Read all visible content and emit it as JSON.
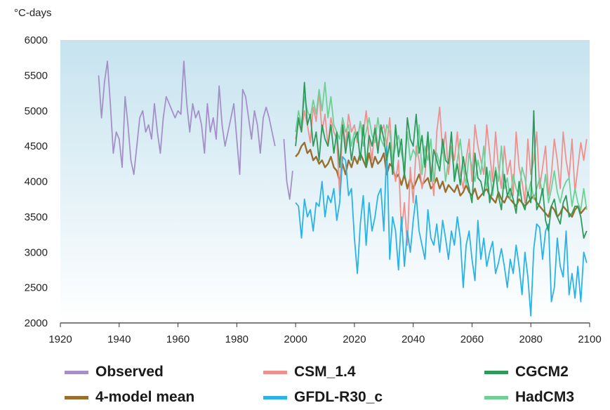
{
  "chart_data": {
    "type": "line",
    "unit_label": "°C-days",
    "xlim": [
      1920,
      2100
    ],
    "ylim": [
      2000,
      6000
    ],
    "x_ticks": [
      1920,
      1940,
      1960,
      1980,
      2000,
      2020,
      2040,
      2060,
      2080,
      2100
    ],
    "y_ticks": [
      2000,
      2500,
      3000,
      3500,
      4000,
      4500,
      5000,
      5500,
      6000
    ],
    "grid": false,
    "legend_position": "bottom",
    "series": [
      {
        "name": "Observed",
        "color": "#a58fc8",
        "x": [
          1933,
          1934,
          1935,
          1936,
          1937,
          1938,
          1939,
          1940,
          1941,
          1942,
          1943,
          1944,
          1945,
          1946,
          1947,
          1948,
          1949,
          1950,
          1951,
          1952,
          1953,
          1954,
          1955,
          1956,
          1957,
          1958,
          1959,
          1960,
          1961,
          1962,
          1963,
          1964,
          1965,
          1966,
          1967,
          1968,
          1969,
          1970,
          1971,
          1972,
          1973,
          1974,
          1975,
          1976,
          1977,
          1978,
          1979,
          1980,
          1981,
          1982,
          1983,
          1984,
          1985,
          1986,
          1987,
          1988,
          1989,
          1990,
          1991,
          1992,
          1993,
          null,
          1996,
          1997,
          1998,
          1999
        ],
        "y": [
          5500,
          4900,
          5400,
          5700,
          5100,
          4400,
          4700,
          4600,
          4200,
          5200,
          4800,
          4300,
          4100,
          4500,
          4900,
          5000,
          4700,
          4800,
          4600,
          5100,
          4700,
          4400,
          4900,
          5200,
          5100,
          5000,
          4900,
          5000,
          4950,
          5700,
          5100,
          4700,
          5100,
          4900,
          5000,
          4800,
          4400,
          5100,
          4700,
          4900,
          4600,
          5350,
          4800,
          4500,
          4700,
          4900,
          5100,
          4600,
          4100,
          5300,
          5200,
          4900,
          4600,
          5000,
          4800,
          4400,
          4900,
          5050,
          4900,
          4700,
          4500,
          null,
          4600,
          4000,
          3750,
          4150
        ]
      },
      {
        "name": "CSM_1.4",
        "color": "#f0908c",
        "x": [
          2000,
          2001,
          2002,
          2003,
          2004,
          2005,
          2006,
          2007,
          2008,
          2009,
          2010,
          2011,
          2012,
          2013,
          2014,
          2015,
          2016,
          2017,
          2018,
          2019,
          2020,
          2021,
          2022,
          2023,
          2024,
          2025,
          2026,
          2027,
          2028,
          2029,
          2030,
          2031,
          2032,
          2033,
          2034,
          2035,
          2036,
          2037,
          2038,
          2039,
          2040,
          2041,
          2042,
          2043,
          2044,
          2045,
          2046,
          2047,
          2048,
          2049,
          2050,
          2051,
          2052,
          2053,
          2054,
          2055,
          2056,
          2057,
          2058,
          2059,
          2060,
          2061,
          2062,
          2063,
          2064,
          2065,
          2066,
          2067,
          2068,
          2069,
          2070,
          2071,
          2072,
          2073,
          2074,
          2075,
          2076,
          2077,
          2078,
          2079,
          2080,
          2081,
          2082,
          2083,
          2084,
          2085,
          2086,
          2087,
          2088,
          2089,
          2090,
          2091,
          2092,
          2093,
          2094,
          2095,
          2096,
          2097,
          2098,
          2099
        ],
        "y": [
          4600,
          4850,
          4700,
          5000,
          4800,
          4550,
          5050,
          4850,
          5250,
          4700,
          4950,
          4500,
          4900,
          4700,
          4600,
          3800,
          4850,
          4500,
          4950,
          4700,
          4800,
          4550,
          4850,
          4650,
          5000,
          4600,
          4300,
          4800,
          4500,
          4700,
          4800,
          4500,
          4900,
          4300,
          4000,
          4300,
          3300,
          3700,
          3100,
          4200,
          3700,
          4500,
          4300,
          3900,
          4100,
          4600,
          4200,
          3800,
          4700,
          5050,
          4400,
          4700,
          4100,
          4500,
          4300,
          4700,
          4100,
          3900,
          4300,
          4600,
          4000,
          4800,
          4500,
          4300,
          4100,
          4800,
          4400,
          4000,
          4700,
          4200,
          3900,
          4500,
          4100,
          4300,
          3800,
          4700,
          4200,
          4000,
          3700,
          4600,
          4100,
          4300,
          4700,
          3900,
          4200,
          4500,
          3800,
          4100,
          4600,
          4300,
          3900,
          4700,
          4300,
          4050,
          4600,
          3850,
          4200,
          4550,
          4300,
          4600
        ]
      },
      {
        "name": "CGCM2",
        "color": "#2e9a5a",
        "x": [
          2000,
          2001,
          2002,
          2003,
          2004,
          2005,
          2006,
          2007,
          2008,
          2009,
          2010,
          2011,
          2012,
          2013,
          2014,
          2015,
          2016,
          2017,
          2018,
          2019,
          2020,
          2021,
          2022,
          2023,
          2024,
          2025,
          2026,
          2027,
          2028,
          2029,
          2030,
          2031,
          2032,
          2033,
          2034,
          2035,
          2036,
          2037,
          2038,
          2039,
          2040,
          2041,
          2042,
          2043,
          2044,
          2045,
          2046,
          2047,
          2048,
          2049,
          2050,
          2051,
          2052,
          2053,
          2054,
          2055,
          2056,
          2057,
          2058,
          2059,
          2060,
          2061,
          2062,
          2063,
          2064,
          2065,
          2066,
          2067,
          2068,
          2069,
          2070,
          2071,
          2072,
          2073,
          2074,
          2075,
          2076,
          2077,
          2078,
          2079,
          2080,
          2081,
          2082,
          2083,
          2084,
          2085,
          2086,
          2087,
          2088,
          2089,
          2090,
          2091,
          2092,
          2093,
          2094,
          2095,
          2096,
          2097,
          2098,
          2099
        ],
        "y": [
          4500,
          4900,
          4700,
          5400,
          4800,
          4950,
          4500,
          4700,
          4300,
          4800,
          4600,
          4500,
          4800,
          4400,
          4700,
          4200,
          4800,
          4400,
          4700,
          4300,
          4600,
          4700,
          4300,
          4800,
          4200,
          4650,
          4500,
          4750,
          4400,
          4800,
          4600,
          4300,
          4550,
          4100,
          4800,
          4350,
          4600,
          4050,
          4900,
          4600,
          4500,
          4950,
          4400,
          4650,
          4200,
          4700,
          4000,
          4450,
          4300,
          4150,
          4600,
          4300,
          4250,
          4700,
          4000,
          4250,
          3950,
          4350,
          4100,
          3900,
          3700,
          4400,
          4050,
          4000,
          3800,
          4200,
          3700,
          3900,
          4150,
          3800,
          3600,
          4100,
          3800,
          3900,
          3750,
          3550,
          4000,
          3700,
          3600,
          3850,
          3700,
          5000,
          3600,
          3700,
          3900,
          3450,
          3300,
          3650,
          3750,
          3500,
          3400,
          3700,
          3800,
          3500,
          3550,
          3650,
          3650,
          3500,
          3200,
          3300
        ]
      },
      {
        "name": "4-model mean",
        "color": "#9a6e2e",
        "x": [
          2000,
          2001,
          2002,
          2003,
          2004,
          2005,
          2006,
          2007,
          2008,
          2009,
          2010,
          2011,
          2012,
          2013,
          2014,
          2015,
          2016,
          2017,
          2018,
          2019,
          2020,
          2021,
          2022,
          2023,
          2024,
          2025,
          2026,
          2027,
          2028,
          2029,
          2030,
          2031,
          2032,
          2033,
          2034,
          2035,
          2036,
          2037,
          2038,
          2039,
          2040,
          2041,
          2042,
          2043,
          2044,
          2045,
          2046,
          2047,
          2048,
          2049,
          2050,
          2051,
          2052,
          2053,
          2054,
          2055,
          2056,
          2057,
          2058,
          2059,
          2060,
          2061,
          2062,
          2063,
          2064,
          2065,
          2066,
          2067,
          2068,
          2069,
          2070,
          2071,
          2072,
          2073,
          2074,
          2075,
          2076,
          2077,
          2078,
          2079,
          2080,
          2081,
          2082,
          2083,
          2084,
          2085,
          2086,
          2087,
          2088,
          2089,
          2090,
          2091,
          2092,
          2093,
          2094,
          2095,
          2096,
          2097,
          2098,
          2099
        ],
        "y": [
          4350,
          4400,
          4500,
          4550,
          4400,
          4450,
          4300,
          4350,
          4250,
          4300,
          4200,
          4250,
          4350,
          4200,
          4150,
          4000,
          4250,
          4100,
          4300,
          4200,
          4350,
          4250,
          4400,
          4300,
          4200,
          4400,
          4200,
          4350,
          4250,
          4300,
          4400,
          4100,
          4250,
          4200,
          4050,
          4100,
          3950,
          4100,
          3900,
          4050,
          3900,
          4000,
          4100,
          3950,
          4000,
          4050,
          3900,
          3950,
          4050,
          3900,
          4000,
          3850,
          3950,
          3900,
          3850,
          3950,
          3800,
          3850,
          3950,
          3850,
          3800,
          3900,
          3750,
          3800,
          3850,
          3900,
          3800,
          3750,
          3700,
          3850,
          3750,
          3700,
          3800,
          3750,
          3700,
          3650,
          3750,
          3700,
          3650,
          3700,
          3750,
          3800,
          3700,
          3650,
          3600,
          3550,
          3500,
          3650,
          3600,
          3500,
          3550,
          3650,
          3600,
          3550,
          3500,
          3600,
          3650,
          3550,
          3600,
          3650
        ]
      },
      {
        "name": "GFDL-R30_c",
        "color": "#29b3e6",
        "x": [
          2000,
          2001,
          2002,
          2003,
          2004,
          2005,
          2006,
          2007,
          2008,
          2009,
          2010,
          2011,
          2012,
          2013,
          2014,
          2015,
          2016,
          2017,
          2018,
          2019,
          2020,
          2021,
          2022,
          2023,
          2024,
          2025,
          2026,
          2027,
          2028,
          2029,
          2030,
          2031,
          2032,
          2033,
          2034,
          2035,
          2036,
          2037,
          2038,
          2039,
          2040,
          2041,
          2042,
          2043,
          2044,
          2045,
          2046,
          2047,
          2048,
          2049,
          2050,
          2051,
          2052,
          2053,
          2054,
          2055,
          2056,
          2057,
          2058,
          2059,
          2060,
          2061,
          2062,
          2063,
          2064,
          2065,
          2066,
          2067,
          2068,
          2069,
          2070,
          2071,
          2072,
          2073,
          2074,
          2075,
          2076,
          2077,
          2078,
          2079,
          2080,
          2081,
          2082,
          2083,
          2084,
          2085,
          2086,
          2087,
          2088,
          2089,
          2090,
          2091,
          2092,
          2093,
          2094,
          2095,
          2096,
          2097,
          2098,
          2099
        ],
        "y": [
          3700,
          3650,
          3200,
          3750,
          3500,
          3600,
          3300,
          3700,
          3650,
          4000,
          3500,
          3800,
          3700,
          3900,
          3450,
          3700,
          4350,
          4300,
          3800,
          3900,
          3200,
          2700,
          3400,
          3800,
          3100,
          3700,
          3300,
          3500,
          3800,
          3900,
          3300,
          4500,
          2900,
          3500,
          3300,
          2750,
          3500,
          2800,
          3300,
          3000,
          3450,
          3800,
          3300,
          3100,
          2900,
          3600,
          3200,
          3100,
          3400,
          3000,
          3450,
          3200,
          2900,
          3300,
          3100,
          3500,
          3200,
          2500,
          3100,
          3300,
          2900,
          2600,
          3450,
          2900,
          3200,
          2800,
          3000,
          3150,
          2700,
          2850,
          3050,
          2800,
          2500,
          2900,
          2700,
          3100,
          2800,
          2400,
          3000,
          2650,
          2100,
          3050,
          3400,
          3350,
          2900,
          3300,
          3400,
          2300,
          2500,
          3200,
          2800,
          2650,
          3300,
          2400,
          2700,
          2350,
          2800,
          2300,
          3000,
          2850
        ]
      },
      {
        "name": "HadCM3",
        "color": "#6fcf95",
        "x": [
          2000,
          2001,
          2002,
          2003,
          2004,
          2005,
          2006,
          2007,
          2008,
          2009,
          2010,
          2011,
          2012,
          2013,
          2014,
          2015,
          2016,
          2017,
          2018,
          2019,
          2020,
          2021,
          2022,
          2023,
          2024,
          2025,
          2026,
          2027,
          2028,
          2029,
          2030,
          2031,
          2032,
          2033,
          2034,
          2035,
          2036,
          2037,
          2038,
          2039,
          2040,
          2041,
          2042,
          2043,
          2044,
          2045,
          2046,
          2047,
          2048,
          2049,
          2050,
          2051,
          2052,
          2053,
          2054,
          2055,
          2056,
          2057,
          2058,
          2059,
          2060,
          2061,
          2062,
          2063,
          2064,
          2065,
          2066,
          2067,
          2068,
          2069,
          2070,
          2071,
          2072,
          2073,
          2074,
          2075,
          2076,
          2077,
          2078,
          2079,
          2080,
          2081,
          2082,
          2083,
          2084,
          2085,
          2086,
          2087,
          2088,
          2089,
          2090,
          2091,
          2092,
          2093,
          2094,
          2095,
          2096,
          2097,
          2098,
          2099
        ],
        "y": [
          4700,
          5000,
          4800,
          5200,
          5000,
          4900,
          5150,
          4950,
          5300,
          5000,
          5400,
          4900,
          5200,
          4800,
          4700,
          4600,
          4900,
          4700,
          4800,
          4500,
          4700,
          4600,
          4850,
          4500,
          4700,
          4900,
          4650,
          4550,
          4900,
          4600,
          4500,
          4800,
          4700,
          4300,
          4500,
          4650,
          4400,
          4200,
          4700,
          4300,
          4450,
          4350,
          4800,
          4100,
          4500,
          4300,
          4600,
          4000,
          4400,
          4250,
          4500,
          4000,
          4300,
          4450,
          4100,
          4300,
          4600,
          4200,
          3950,
          4400,
          4200,
          4000,
          4300,
          4100,
          4500,
          3900,
          4150,
          3800,
          4200,
          4000,
          4500,
          3900,
          4050,
          3750,
          4100,
          3900,
          3800,
          4200,
          4050,
          3800,
          4000,
          3750,
          3900,
          4050,
          3800,
          4100,
          3700,
          3900,
          4150,
          3850,
          3700,
          3900,
          4000,
          4050,
          3650,
          3900,
          3700,
          3600,
          3900,
          3600
        ]
      }
    ],
    "legend": [
      {
        "label": "Observed",
        "color": "#a58fc8"
      },
      {
        "label": "CSM_1.4",
        "color": "#f0908c"
      },
      {
        "label": "CGCM2",
        "color": "#2e9a5a"
      },
      {
        "label": "4-model mean",
        "color": "#9a6e2e"
      },
      {
        "label": "GFDL-R30_c",
        "color": "#29b3e6"
      },
      {
        "label": "HadCM3",
        "color": "#6fcf95"
      }
    ],
    "background_gradient": [
      "#c6e3ef",
      "#ffffff"
    ]
  }
}
